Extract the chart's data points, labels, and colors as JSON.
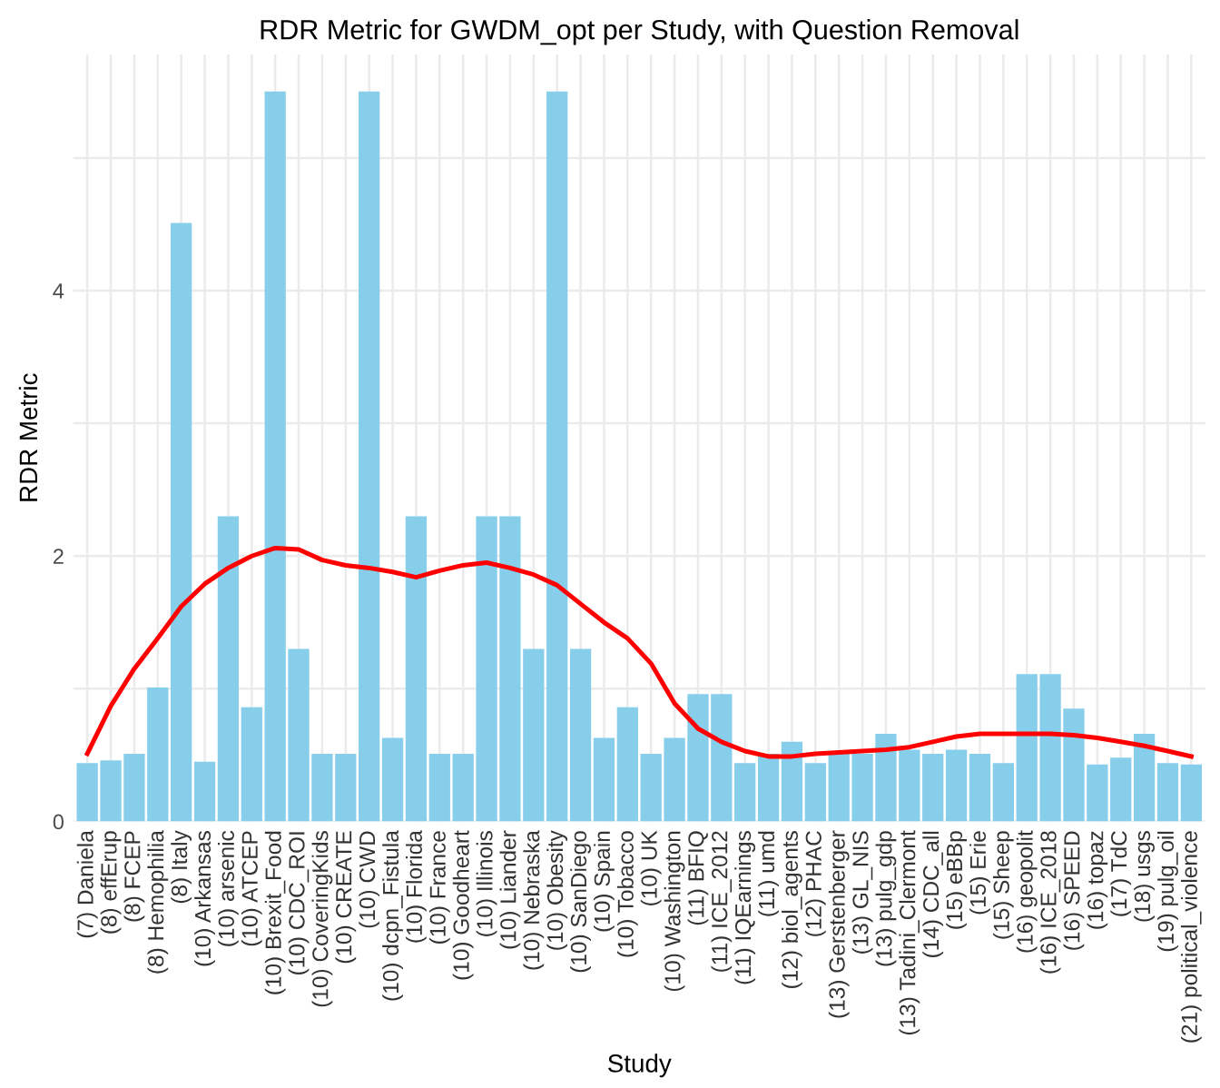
{
  "chart_data": {
    "type": "bar",
    "title": "RDR Metric for GWDM_opt per Study, with Question Removal",
    "xlabel": "Study",
    "ylabel": "RDR Metric",
    "categories": [
      "(7) Daniela",
      "(8) effErup",
      "(8) FCEP",
      "(8) Hemophilia",
      "(8) Italy",
      "(10) Arkansas",
      "(10) arsenic",
      "(10) ATCEP",
      "(10) Brexit_Food",
      "(10) CDC_ROI",
      "(10) CoveringKids",
      "(10) CREATE",
      "(10) CWD",
      "(10) dcpn_Fistula",
      "(10) Florida",
      "(10) France",
      "(10) Goodheart",
      "(10) Illinois",
      "(10) Liander",
      "(10) Nebraska",
      "(10) Obesity",
      "(10) SanDiego",
      "(10) Spain",
      "(10) Tobacco",
      "(10) UK",
      "(10) Washington",
      "(11) BFIQ",
      "(11) ICE_2012",
      "(11) IQEarnings",
      "(11) umd",
      "(12) biol_agents",
      "(12) PHAC",
      "(13) Gerstenberger",
      "(13) GL_NIS",
      "(13) pulg_gdp",
      "(13) Tadini_Clermont",
      "(14) CDC_all",
      "(15) eBBp",
      "(15) Erie",
      "(15) Sheep",
      "(16) geopolit",
      "(16) ICE_2018",
      "(16) SPEED",
      "(16) topaz",
      "(17) TdC",
      "(18) usgs",
      "(19) pulg_oil",
      "(21) political_violence"
    ],
    "series": [
      {
        "color": "#87ceeb",
        "values": [
          0.44,
          0.46,
          0.51,
          1.01,
          4.51,
          0.45,
          2.3,
          0.86,
          5.5,
          1.3,
          0.51,
          0.51,
          5.5,
          0.63,
          2.3,
          0.51,
          0.51,
          2.3,
          2.3,
          1.3,
          5.5,
          1.3,
          0.63,
          0.86,
          0.51,
          0.63,
          0.96,
          0.96,
          0.44,
          0.51,
          0.6,
          0.44,
          0.51,
          0.51,
          0.66,
          0.54,
          0.51,
          0.54,
          0.51,
          0.44,
          1.11,
          1.11,
          0.85,
          0.43,
          0.48,
          0.66,
          0.44,
          0.43
        ]
      },
      {
        "type": "line",
        "color": "#ff0000",
        "values": [
          0.51,
          0.87,
          1.15,
          1.38,
          1.62,
          1.79,
          1.91,
          2.0,
          2.06,
          2.05,
          1.97,
          1.93,
          1.91,
          1.88,
          1.84,
          1.89,
          1.93,
          1.95,
          1.91,
          1.86,
          1.78,
          1.64,
          1.5,
          1.38,
          1.19,
          0.89,
          0.7,
          0.6,
          0.53,
          0.49,
          0.49,
          0.51,
          0.52,
          0.53,
          0.54,
          0.56,
          0.6,
          0.64,
          0.66,
          0.66,
          0.66,
          0.66,
          0.65,
          0.63,
          0.6,
          0.57,
          0.53,
          0.49
        ]
      }
    ],
    "ylim": [
      0,
      5.78
    ],
    "yticks": [
      0,
      {
        "value": 1,
        "label": null
      },
      2,
      {
        "value": 3,
        "label": null
      },
      4,
      {
        "value": 5,
        "label": null
      }
    ],
    "grid": true
  }
}
